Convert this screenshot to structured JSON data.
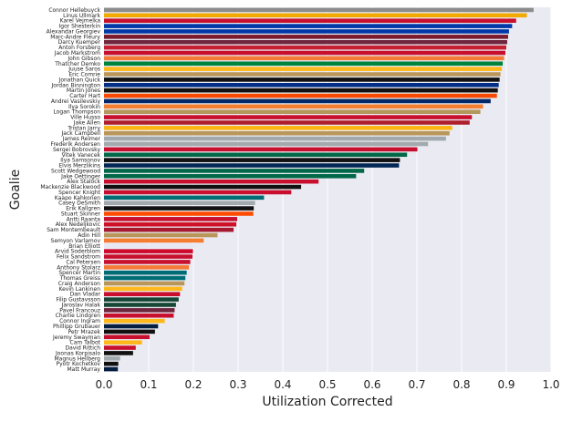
{
  "chart_data": {
    "type": "bar",
    "orientation": "horizontal",
    "xlabel": "Utilization Corrected",
    "ylabel": "Goalie",
    "xlim": [
      0.0,
      1.0
    ],
    "xticks": [
      "0.0",
      "0.1",
      "0.2",
      "0.3",
      "0.4",
      "0.5",
      "0.6",
      "0.7",
      "0.8",
      "0.9",
      "1.0"
    ],
    "grid": true,
    "categories": [
      "Connor Hellebuyck",
      "Linus Ullmark",
      "Karel Vejmelka",
      "Igor Shesterkin",
      "Alexandar Georgiev",
      "Marc-Andre Fleury",
      "Darcy Kuemper",
      "Anton Forsberg",
      "Jacob Markstrom",
      "John Gibson",
      "Thatcher Demko",
      "Juuse Saros",
      "Eric Comrie",
      "Jonathan Quick",
      "Jordan Binnington",
      "Martin Jones",
      "Carter Hart",
      "Andrei Vasilevskiy",
      "Ilya Sorokin",
      "Logan Thompson",
      "Ville Husso",
      "Jake Allen",
      "Tristan Jarry",
      "Jack Campbell",
      "James Reimer",
      "Frederik Andersen",
      "Sergei Bobrovsky",
      "Vitek Vanecek",
      "Ilya Samsonov",
      "Elvis Merzlikins",
      "Scott Wedgewood",
      "Jake Oettinger",
      "Alex Stalock",
      "Mackenzie Blackwood",
      "Spencer Knight",
      "Kaapo Kahkonen",
      "Casey DeSmith",
      "Erik Kallgren",
      "Stuart Skinner",
      "Antti Raanta",
      "Alex Nedeljkovic",
      "Sam Montembeault",
      "Adin Hill",
      "Semyon Varlamov",
      "Brian Elliott",
      "Arvid Soderblom",
      "Felix Sandstrom",
      "Cal Petersen",
      "Anthony Stolarz",
      "Spencer Martin",
      "Thomas Greiss",
      "Craig Anderson",
      "Kevin Lankinen",
      "Dan Vladar",
      "Filip Gustavsson",
      "Jaroslav Halak",
      "Pavel Francouz",
      "Charlie Lindgren",
      "Connor Ingram",
      "Phillipp Grubauer",
      "Petr Mrazek",
      "Jeremy Swayman",
      "Cam Talbot",
      "David Rittich",
      "Joonas Korpisalo",
      "Magnus Hellberg",
      "Pyotr Kochetkov",
      "Matt Murray"
    ],
    "values": [
      0.961,
      0.946,
      0.922,
      0.913,
      0.906,
      0.904,
      0.902,
      0.9,
      0.898,
      0.895,
      0.892,
      0.89,
      0.887,
      0.885,
      0.883,
      0.881,
      0.879,
      0.865,
      0.848,
      0.842,
      0.823,
      0.818,
      0.779,
      0.773,
      0.765,
      0.725,
      0.701,
      0.678,
      0.662,
      0.66,
      0.582,
      0.564,
      0.48,
      0.441,
      0.419,
      0.358,
      0.338,
      0.335,
      0.334,
      0.298,
      0.296,
      0.29,
      0.254,
      0.223,
      0.205,
      0.199,
      0.198,
      0.193,
      0.19,
      0.185,
      0.182,
      0.18,
      0.175,
      0.17,
      0.167,
      0.161,
      0.158,
      0.156,
      0.136,
      0.121,
      0.114,
      0.102,
      0.085,
      0.071,
      0.065,
      0.036,
      0.032,
      0.031
    ],
    "colors": [
      "#8c8c8c",
      "#f2a900",
      "#c8102e",
      "#0038a8",
      "#0038a8",
      "#7b1a2c",
      "#6f263d",
      "#c52032",
      "#c8102e",
      "#f47a38",
      "#00843d",
      "#ffb81c",
      "#b9975b",
      "#111111",
      "#002f87",
      "#111111",
      "#f74902",
      "#002868",
      "#f47d30",
      "#b4975a",
      "#c8102e",
      "#af1e2d",
      "#fcb514",
      "#b9975b",
      "#a2aaad",
      "#a2aaad",
      "#c8102e",
      "#006847",
      "#111111",
      "#002654",
      "#006847",
      "#006847",
      "#c8102e",
      "#111111",
      "#c8102e",
      "#006d75",
      "#a2aaad",
      "#111111",
      "#ff4c00",
      "#c8102e",
      "#ce1126",
      "#a6192e",
      "#b9975b",
      "#f47d30",
      "#e8e8f2",
      "#cf0a2c",
      "#c8102e",
      "#c8102e",
      "#f47a38",
      "#006d75",
      "#006d75",
      "#b9975b",
      "#ffb81c",
      "#c8102e",
      "#154734",
      "#154734",
      "#6f263d",
      "#c8102e",
      "#ffb81c",
      "#041e42",
      "#111111",
      "#c8102e",
      "#ffb81c",
      "#c8102e",
      "#111111",
      "#a2aaad",
      "#111111",
      "#041e42"
    ]
  }
}
